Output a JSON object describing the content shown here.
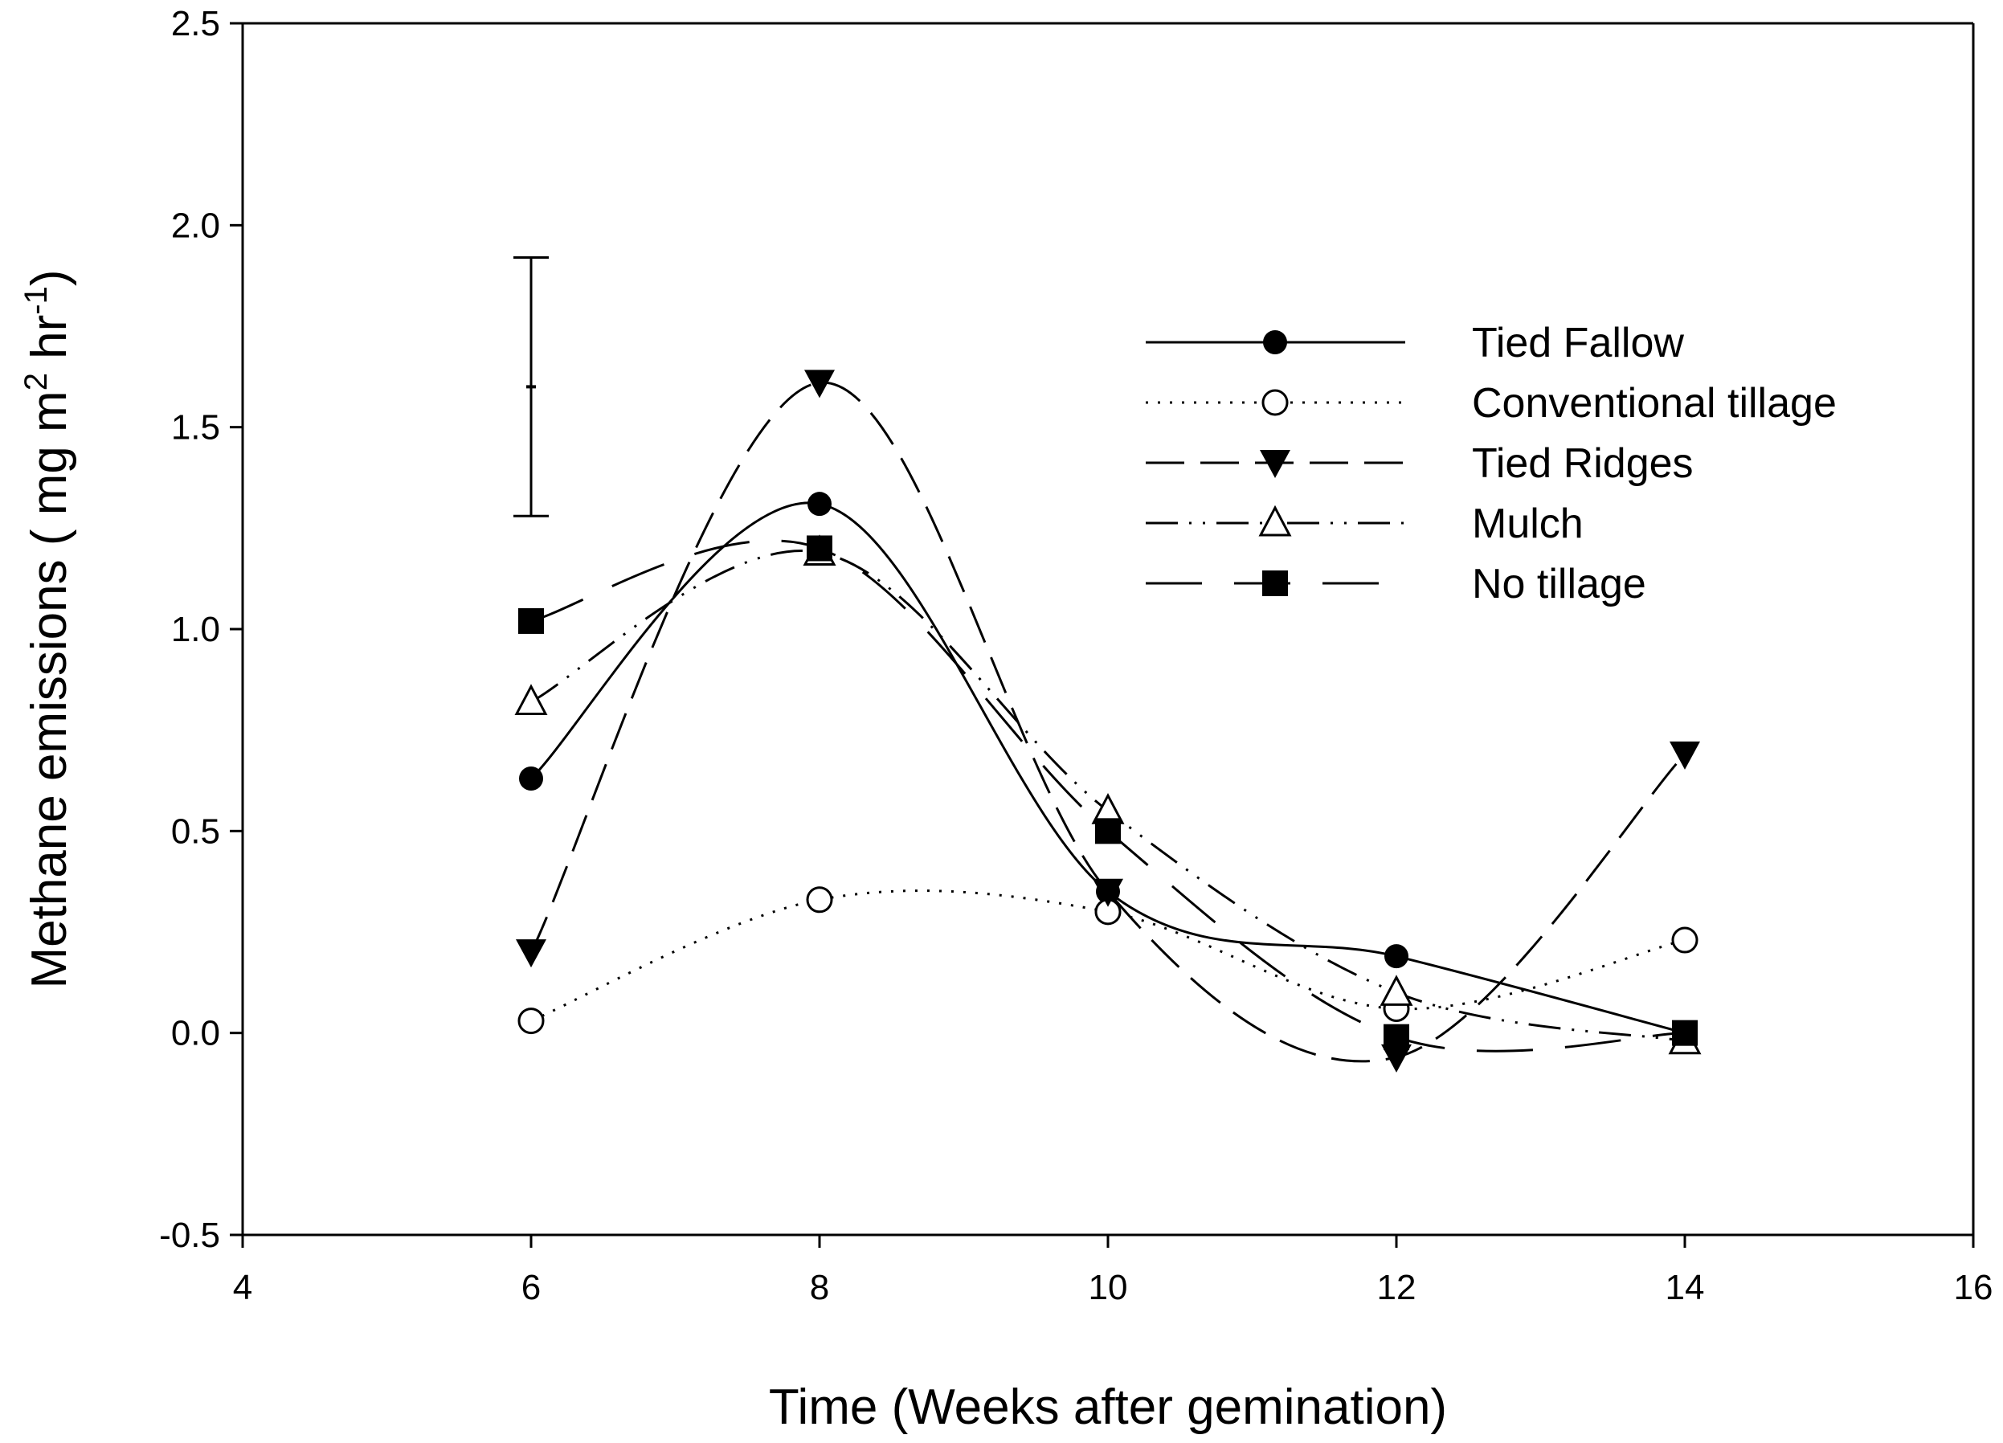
{
  "chart_data": {
    "type": "line",
    "title": "",
    "xlabel": "Time (Weeks after gemination)",
    "ylabel": "Methane emissions ( mg m",
    "ylabel_sup1": "2",
    "ylabel_mid": " hr",
    "ylabel_sup2": "-1",
    "ylabel_end": ")",
    "xlim": [
      4,
      16
    ],
    "ylim": [
      -0.5,
      2.5
    ],
    "xticks": [
      "4",
      "6",
      "8",
      "10",
      "12",
      "14",
      "16"
    ],
    "yticks": [
      "-0.5",
      "0.0",
      "0.5",
      "1.0",
      "1.5",
      "2.0",
      "2.5"
    ],
    "grid": false,
    "legend_position": "top-right",
    "x": [
      6,
      8,
      10,
      12,
      14
    ],
    "series": [
      {
        "name": "Tied Fallow",
        "marker": "filled-circle",
        "dash": "solid",
        "values": [
          0.63,
          1.31,
          0.35,
          0.19,
          0.0
        ]
      },
      {
        "name": "Conventional tillage",
        "marker": "open-circle",
        "dash": "dotted",
        "values": [
          0.03,
          0.33,
          0.3,
          0.06,
          0.23
        ]
      },
      {
        "name": "Tied Ridges",
        "marker": "filled-triangle-down",
        "dash": "long-dash",
        "values": [
          0.2,
          1.61,
          0.35,
          -0.06,
          0.69
        ]
      },
      {
        "name": "Mulch",
        "marker": "open-triangle-up",
        "dash": "dash-dot-dot",
        "values": [
          0.82,
          1.19,
          0.55,
          0.1,
          -0.02
        ]
      },
      {
        "name": "No tillage",
        "marker": "filled-square",
        "dash": "long-dash-wide",
        "values": [
          1.02,
          1.2,
          0.5,
          -0.01,
          0.0
        ]
      }
    ],
    "error_bar": {
      "x": 6,
      "center": 1.6,
      "low": 1.28,
      "high": 1.92
    }
  }
}
